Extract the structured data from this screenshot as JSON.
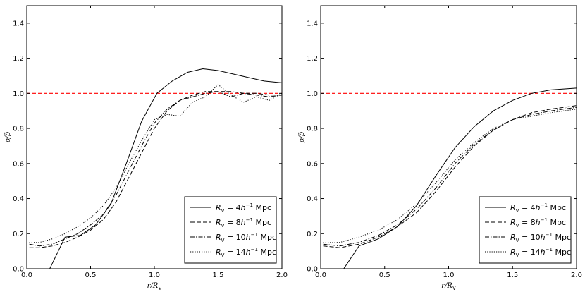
{
  "chart_data": [
    {
      "type": "line",
      "panel": "left",
      "xlabel": "r/R_V",
      "ylabel": "ρ/ρ̄",
      "xlim": [
        0,
        2
      ],
      "ylim": [
        0,
        1.5
      ],
      "xticks": [
        "0.0",
        "0.5",
        "1.0",
        "1.5",
        "2.0"
      ],
      "yticks": [
        "0.0",
        "0.2",
        "0.4",
        "0.6",
        "0.8",
        "1.0",
        "1.2",
        "1.4"
      ],
      "reference_line": {
        "y": 1.0,
        "color": "#ff0000",
        "style": "dashed"
      },
      "legend_position": "lower-right",
      "series": [
        {
          "name": "R_V = 4h^-1 Mpc",
          "style": "solid",
          "x": [
            0.18,
            0.3,
            0.42,
            0.54,
            0.66,
            0.78,
            0.9,
            1.02,
            1.14,
            1.26,
            1.38,
            1.5,
            1.62,
            1.74,
            1.86,
            2.0
          ],
          "y": [
            0.0,
            0.18,
            0.19,
            0.25,
            0.37,
            0.6,
            0.84,
            1.0,
            1.07,
            1.12,
            1.14,
            1.13,
            1.11,
            1.09,
            1.07,
            1.06
          ]
        },
        {
          "name": "R_V = 8h^-1 Mpc",
          "style": "dashed",
          "x": [
            0.02,
            0.1,
            0.2,
            0.3,
            0.4,
            0.5,
            0.6,
            0.7,
            0.8,
            0.9,
            1.0,
            1.1,
            1.2,
            1.3,
            1.4,
            1.5,
            1.6,
            1.7,
            1.8,
            1.9,
            2.0
          ],
          "y": [
            0.12,
            0.12,
            0.13,
            0.15,
            0.18,
            0.22,
            0.28,
            0.38,
            0.52,
            0.66,
            0.8,
            0.9,
            0.96,
            0.99,
            1.01,
            1.01,
            1.01,
            1.0,
            1.0,
            0.99,
            0.99
          ]
        },
        {
          "name": "R_V = 10h^-1 Mpc",
          "style": "dashdot",
          "x": [
            0.02,
            0.1,
            0.2,
            0.3,
            0.4,
            0.5,
            0.6,
            0.7,
            0.8,
            0.9,
            1.0,
            1.1,
            1.2,
            1.3,
            1.4,
            1.5,
            1.6,
            1.7,
            1.8,
            1.9,
            2.0
          ],
          "y": [
            0.14,
            0.13,
            0.14,
            0.17,
            0.2,
            0.25,
            0.31,
            0.42,
            0.56,
            0.7,
            0.83,
            0.91,
            0.96,
            0.98,
            1.0,
            1.01,
            0.98,
            1.0,
            0.99,
            0.98,
            0.99
          ]
        },
        {
          "name": "R_V = 14h^-1 Mpc",
          "style": "dotted",
          "x": [
            0.02,
            0.1,
            0.2,
            0.3,
            0.4,
            0.5,
            0.6,
            0.7,
            0.8,
            0.9,
            1.0,
            1.1,
            1.2,
            1.3,
            1.4,
            1.5,
            1.6,
            1.7,
            1.8,
            1.9,
            2.0
          ],
          "y": [
            0.15,
            0.15,
            0.17,
            0.2,
            0.24,
            0.29,
            0.36,
            0.46,
            0.6,
            0.73,
            0.85,
            0.88,
            0.87,
            0.95,
            0.98,
            1.05,
            0.99,
            0.95,
            0.98,
            0.96,
            1.0
          ]
        }
      ]
    },
    {
      "type": "line",
      "panel": "right",
      "xlabel": "r/R_V",
      "ylabel": "ρ/ρ̄",
      "xlim": [
        0,
        2
      ],
      "ylim": [
        0,
        1.5
      ],
      "xticks": [
        "0.0",
        "0.5",
        "1.0",
        "1.5",
        "2.0"
      ],
      "yticks": [
        "0.0",
        "0.2",
        "0.4",
        "0.6",
        "0.8",
        "1.0",
        "1.2",
        "1.4"
      ],
      "reference_line": {
        "y": 1.0,
        "color": "#ff0000",
        "style": "dashed"
      },
      "legend_position": "lower-right",
      "series": [
        {
          "name": "R_V = 4h^-1 Mpc",
          "style": "solid",
          "x": [
            0.18,
            0.3,
            0.45,
            0.6,
            0.75,
            0.9,
            1.05,
            1.2,
            1.35,
            1.5,
            1.65,
            1.8,
            2.0
          ],
          "y": [
            0.0,
            0.13,
            0.17,
            0.24,
            0.36,
            0.53,
            0.69,
            0.81,
            0.9,
            0.96,
            1.0,
            1.02,
            1.03
          ]
        },
        {
          "name": "R_V = 8h^-1 Mpc",
          "style": "dashed",
          "x": [
            0.02,
            0.15,
            0.3,
            0.45,
            0.6,
            0.75,
            0.9,
            1.05,
            1.2,
            1.35,
            1.5,
            1.65,
            1.8,
            2.0
          ],
          "y": [
            0.13,
            0.12,
            0.14,
            0.18,
            0.24,
            0.32,
            0.44,
            0.58,
            0.7,
            0.79,
            0.85,
            0.89,
            0.91,
            0.93
          ]
        },
        {
          "name": "R_V = 10h^-1 Mpc",
          "style": "dashdot",
          "x": [
            0.02,
            0.15,
            0.3,
            0.45,
            0.6,
            0.75,
            0.9,
            1.05,
            1.2,
            1.35,
            1.5,
            1.65,
            1.8,
            2.0
          ],
          "y": [
            0.14,
            0.13,
            0.15,
            0.19,
            0.25,
            0.34,
            0.46,
            0.6,
            0.71,
            0.79,
            0.85,
            0.88,
            0.9,
            0.92
          ]
        },
        {
          "name": "R_V = 14h^-1 Mpc",
          "style": "dotted",
          "x": [
            0.02,
            0.15,
            0.3,
            0.45,
            0.6,
            0.75,
            0.9,
            1.05,
            1.2,
            1.35,
            1.5,
            1.65,
            1.8,
            2.0
          ],
          "y": [
            0.15,
            0.15,
            0.18,
            0.22,
            0.28,
            0.37,
            0.49,
            0.62,
            0.72,
            0.8,
            0.85,
            0.87,
            0.89,
            0.91
          ]
        }
      ]
    }
  ]
}
